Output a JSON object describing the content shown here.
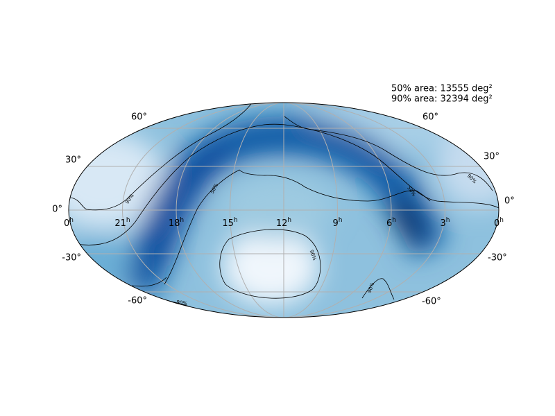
{
  "map": {
    "annotations": [
      "50% area: 13555 deg²",
      "90% area: 32394 deg²"
    ],
    "lat_labels": [
      "60°",
      "30°",
      "0°",
      "-30°",
      "-60°"
    ],
    "ra_labels": [
      "0",
      "21",
      "18",
      "15",
      "12",
      "9",
      "6",
      "3",
      "0"
    ],
    "ra_unit": "h",
    "contour_labels": {
      "inner": "50%",
      "outer": "90%"
    }
  }
}
